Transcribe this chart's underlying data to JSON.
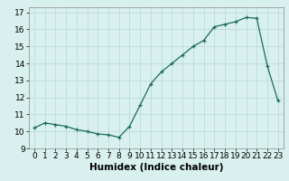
{
  "x": [
    0,
    1,
    2,
    3,
    4,
    5,
    6,
    7,
    8,
    9,
    10,
    11,
    12,
    13,
    14,
    15,
    16,
    17,
    18,
    19,
    20,
    21,
    22,
    23
  ],
  "y": [
    10.2,
    10.5,
    10.4,
    10.3,
    10.1,
    10.0,
    9.85,
    9.8,
    9.65,
    10.3,
    11.55,
    12.8,
    13.5,
    14.0,
    14.5,
    15.0,
    15.35,
    16.15,
    16.3,
    16.45,
    16.7,
    16.65,
    13.85,
    11.8
  ],
  "xlabel": "Humidex (Indice chaleur)",
  "xlim": [
    -0.5,
    23.5
  ],
  "ylim": [
    9,
    17.3
  ],
  "yticks": [
    9,
    10,
    11,
    12,
    13,
    14,
    15,
    16,
    17
  ],
  "xticks": [
    0,
    1,
    2,
    3,
    4,
    5,
    6,
    7,
    8,
    9,
    10,
    11,
    12,
    13,
    14,
    15,
    16,
    17,
    18,
    19,
    20,
    21,
    22,
    23
  ],
  "line_color": "#1a6b5a",
  "marker": "+",
  "bg_color": "#d8f0ee",
  "grid_color": "#b8d8d4",
  "tick_label_fontsize": 6.5,
  "xlabel_fontsize": 7.5
}
